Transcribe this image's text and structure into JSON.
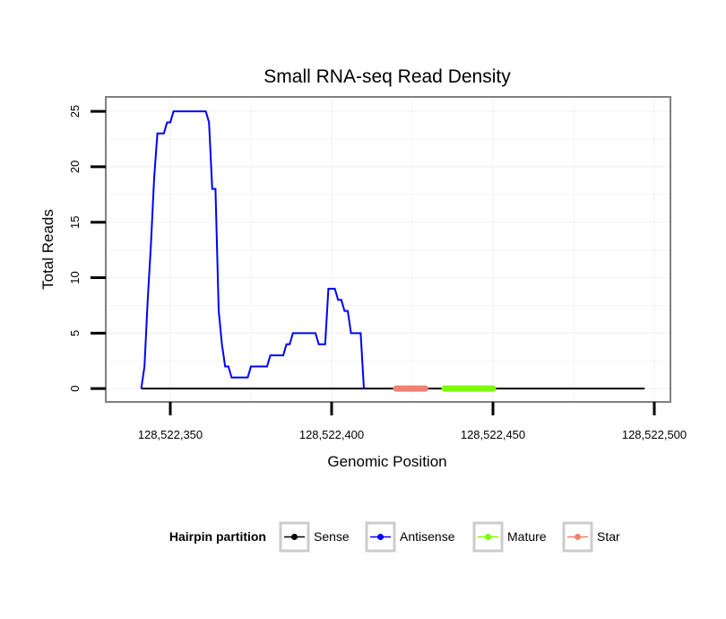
{
  "chart_data": {
    "type": "line",
    "title": "Small RNA-seq Read Density",
    "xlabel": "Genomic Position",
    "ylabel": "Total Reads",
    "xlim": [
      128522330,
      128522505
    ],
    "ylim": [
      -1.2,
      26.3
    ],
    "x_ticks": [
      128522350,
      128522400,
      128522450,
      128522500
    ],
    "x_tick_labels": [
      "128,522,350",
      "128,522,400",
      "128,522,450",
      "128,522,500"
    ],
    "y_ticks": [
      0,
      5,
      10,
      15,
      20,
      25
    ],
    "y_tick_labels": [
      "0",
      "5",
      "10",
      "15",
      "20",
      "25"
    ],
    "grid": true,
    "legend": {
      "title": "Hairpin partition",
      "position": "bottom",
      "entries": [
        {
          "name": "Sense",
          "color": "#000000"
        },
        {
          "name": "Antisense",
          "color": "#0000ff"
        },
        {
          "name": "Mature",
          "color": "#7cfc00"
        },
        {
          "name": "Star",
          "color": "#f08070"
        }
      ]
    },
    "series": [
      {
        "name": "Sense",
        "color": "#000000",
        "x": [
          128522341,
          128522497
        ],
        "y": [
          0,
          0
        ]
      },
      {
        "name": "Antisense",
        "color": "#0000ff",
        "x": [
          128522341,
          128522342,
          128522343,
          128522344,
          128522345,
          128522346,
          128522347,
          128522348,
          128522349,
          128522350,
          128522351,
          128522352,
          128522353,
          128522354,
          128522355,
          128522356,
          128522357,
          128522358,
          128522359,
          128522360,
          128522361,
          128522362,
          128522363,
          128522364,
          128522365,
          128522366,
          128522367,
          128522368,
          128522369,
          128522370,
          128522371,
          128522372,
          128522373,
          128522374,
          128522375,
          128522376,
          128522377,
          128522378,
          128522379,
          128522380,
          128522381,
          128522382,
          128522383,
          128522384,
          128522385,
          128522386,
          128522387,
          128522388,
          128522389,
          128522390,
          128522391,
          128522392,
          128522393,
          128522394,
          128522395,
          128522396,
          128522397,
          128522398,
          128522399,
          128522400,
          128522401,
          128522402,
          128522403,
          128522404,
          128522405,
          128522406,
          128522407,
          128522408,
          128522409,
          128522410
        ],
        "y": [
          0,
          2,
          8,
          13,
          19,
          23,
          23,
          23,
          24,
          24,
          25,
          25,
          25,
          25,
          25,
          25,
          25,
          25,
          25,
          25,
          25,
          24,
          18,
          18,
          7,
          4,
          2,
          2,
          1,
          1,
          1,
          1,
          1,
          1,
          2,
          2,
          2,
          2,
          2,
          2,
          3,
          3,
          3,
          3,
          3,
          4,
          4,
          5,
          5,
          5,
          5,
          5,
          5,
          5,
          5,
          4,
          4,
          4,
          9,
          9,
          9,
          8,
          8,
          7,
          7,
          5,
          5,
          5,
          5,
          0
        ]
      },
      {
        "name": "Mature",
        "color": "#7cfc00",
        "x": [
          128522435,
          128522450
        ],
        "y": [
          0,
          0
        ]
      },
      {
        "name": "Star",
        "color": "#f08070",
        "x": [
          128522420,
          128522429
        ],
        "y": [
          0,
          0
        ]
      }
    ]
  }
}
